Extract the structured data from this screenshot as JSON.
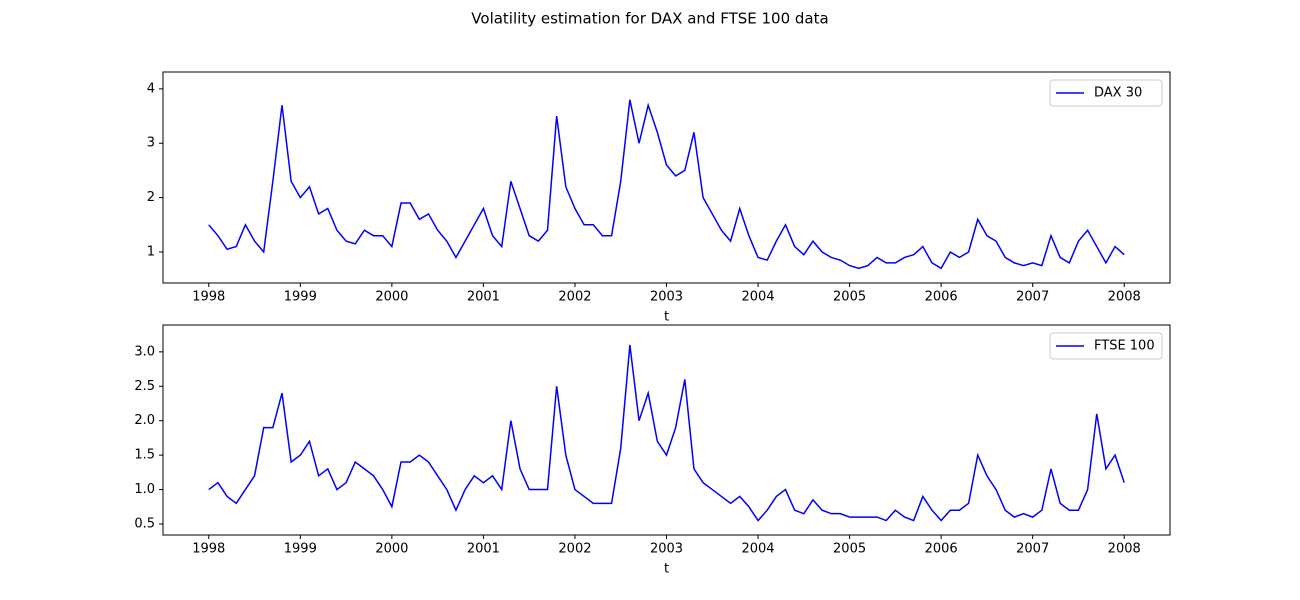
{
  "title": "Volatility estimation for DAX and FTSE 100 data",
  "chart_data": [
    {
      "type": "line",
      "xlabel": "t",
      "legend": "upper right",
      "grid": false,
      "xlim": [
        1997.5,
        2008.5
      ],
      "ylim": [
        0.43,
        4.31
      ],
      "xticks": [
        1998,
        1999,
        2000,
        2001,
        2002,
        2003,
        2004,
        2005,
        2006,
        2007,
        2008
      ],
      "yticks": [
        1,
        2,
        3,
        4
      ],
      "x": [
        1998,
        1998.1,
        1998.2,
        1998.3,
        1998.4,
        1998.5,
        1998.6,
        1998.7,
        1998.8,
        1998.9,
        1999,
        1999.1,
        1999.2,
        1999.3,
        1999.4,
        1999.5,
        1999.6,
        1999.7,
        1999.8,
        1999.9,
        2000,
        2000.1,
        2000.2,
        2000.3,
        2000.4,
        2000.5,
        2000.6,
        2000.7,
        2000.8,
        2000.9,
        2001,
        2001.1,
        2001.2,
        2001.3,
        2001.4,
        2001.5,
        2001.6,
        2001.7,
        2001.8,
        2001.9,
        2002,
        2002.1,
        2002.2,
        2002.3,
        2002.4,
        2002.5,
        2002.6,
        2002.7,
        2002.8,
        2002.9,
        2003,
        2003.1,
        2003.2,
        2003.3,
        2003.4,
        2003.5,
        2003.6,
        2003.7,
        2003.8,
        2003.9,
        2004,
        2004.1,
        2004.2,
        2004.3,
        2004.4,
        2004.5,
        2004.6,
        2004.7,
        2004.8,
        2004.9,
        2005,
        2005.1,
        2005.2,
        2005.3,
        2005.4,
        2005.5,
        2005.6,
        2005.7,
        2005.8,
        2005.9,
        2006,
        2006.1,
        2006.2,
        2006.3,
        2006.4,
        2006.5,
        2006.6,
        2006.7,
        2006.8,
        2006.9,
        2007,
        2007.1,
        2007.2,
        2007.3,
        2007.4,
        2007.5,
        2007.6,
        2007.7,
        2007.8,
        2007.9,
        2008
      ],
      "series": [
        {
          "name": "DAX 30",
          "color": "#0000ff",
          "values": [
            1.5,
            1.3,
            1.05,
            1.1,
            1.5,
            1.2,
            1.0,
            2.3,
            3.7,
            2.3,
            2.0,
            2.2,
            1.7,
            1.8,
            1.4,
            1.2,
            1.15,
            1.4,
            1.3,
            1.3,
            1.1,
            1.9,
            1.9,
            1.6,
            1.7,
            1.4,
            1.2,
            0.9,
            1.2,
            1.5,
            1.8,
            1.3,
            1.1,
            2.3,
            1.8,
            1.3,
            1.2,
            1.4,
            3.5,
            2.2,
            1.8,
            1.5,
            1.5,
            1.3,
            1.3,
            2.3,
            3.8,
            3.0,
            3.7,
            3.2,
            2.6,
            2.4,
            2.5,
            3.2,
            2.0,
            1.7,
            1.4,
            1.2,
            1.8,
            1.3,
            0.9,
            0.85,
            1.2,
            1.5,
            1.1,
            0.95,
            1.2,
            1.0,
            0.9,
            0.85,
            0.75,
            0.7,
            0.75,
            0.9,
            0.8,
            0.8,
            0.9,
            0.95,
            1.1,
            0.8,
            0.7,
            1.0,
            0.9,
            1.0,
            1.6,
            1.3,
            1.2,
            0.9,
            0.8,
            0.75,
            0.8,
            0.75,
            1.3,
            0.9,
            0.8,
            1.2,
            1.4,
            1.1,
            0.8,
            1.1,
            0.95
          ]
        }
      ]
    },
    {
      "type": "line",
      "xlabel": "t",
      "legend": "upper right",
      "grid": false,
      "xlim": [
        1997.5,
        2008.5
      ],
      "ylim": [
        0.34,
        3.39
      ],
      "xticks": [
        1998,
        1999,
        2000,
        2001,
        2002,
        2003,
        2004,
        2005,
        2006,
        2007,
        2008
      ],
      "yticks": [
        0.5,
        {
          "value": 1,
          "label": "1.0"
        },
        1.5,
        {
          "value": 2,
          "label": "2.0"
        },
        2.5,
        {
          "value": 3,
          "label": "3.0"
        }
      ],
      "x": [
        1998,
        1998.1,
        1998.2,
        1998.3,
        1998.4,
        1998.5,
        1998.6,
        1998.7,
        1998.8,
        1998.9,
        1999,
        1999.1,
        1999.2,
        1999.3,
        1999.4,
        1999.5,
        1999.6,
        1999.7,
        1999.8,
        1999.9,
        2000,
        2000.1,
        2000.2,
        2000.3,
        2000.4,
        2000.5,
        2000.6,
        2000.7,
        2000.8,
        2000.9,
        2001,
        2001.1,
        2001.2,
        2001.3,
        2001.4,
        2001.5,
        2001.6,
        2001.7,
        2001.8,
        2001.9,
        2002,
        2002.1,
        2002.2,
        2002.3,
        2002.4,
        2002.5,
        2002.6,
        2002.7,
        2002.8,
        2002.9,
        2003,
        2003.1,
        2003.2,
        2003.3,
        2003.4,
        2003.5,
        2003.6,
        2003.7,
        2003.8,
        2003.9,
        2004,
        2004.1,
        2004.2,
        2004.3,
        2004.4,
        2004.5,
        2004.6,
        2004.7,
        2004.8,
        2004.9,
        2005,
        2005.1,
        2005.2,
        2005.3,
        2005.4,
        2005.5,
        2005.6,
        2005.7,
        2005.8,
        2005.9,
        2006,
        2006.1,
        2006.2,
        2006.3,
        2006.4,
        2006.5,
        2006.6,
        2006.7,
        2006.8,
        2006.9,
        2007,
        2007.1,
        2007.2,
        2007.3,
        2007.4,
        2007.5,
        2007.6,
        2007.7,
        2007.8,
        2007.9,
        2008
      ],
      "series": [
        {
          "name": "FTSE 100",
          "color": "#0000ff",
          "values": [
            1.0,
            1.1,
            0.9,
            0.8,
            1.0,
            1.2,
            1.9,
            1.9,
            2.4,
            1.4,
            1.5,
            1.7,
            1.2,
            1.3,
            1.0,
            1.1,
            1.4,
            1.3,
            1.2,
            1.0,
            0.75,
            1.4,
            1.4,
            1.5,
            1.4,
            1.2,
            1.0,
            0.7,
            1.0,
            1.2,
            1.1,
            1.2,
            1.0,
            2.0,
            1.3,
            1.0,
            1.0,
            1.0,
            2.5,
            1.5,
            1.0,
            0.9,
            0.8,
            0.8,
            0.8,
            1.6,
            3.1,
            2.0,
            2.4,
            1.7,
            1.5,
            1.9,
            2.6,
            1.3,
            1.1,
            1.0,
            0.9,
            0.8,
            0.9,
            0.75,
            0.55,
            0.7,
            0.9,
            1.0,
            0.7,
            0.65,
            0.85,
            0.7,
            0.65,
            0.65,
            0.6,
            0.6,
            0.6,
            0.6,
            0.55,
            0.7,
            0.6,
            0.55,
            0.9,
            0.7,
            0.55,
            0.7,
            0.7,
            0.8,
            1.5,
            1.2,
            1.0,
            0.7,
            0.6,
            0.65,
            0.6,
            0.7,
            1.3,
            0.8,
            0.7,
            0.7,
            1.0,
            2.1,
            1.3,
            1.5,
            1.1
          ]
        }
      ]
    }
  ]
}
